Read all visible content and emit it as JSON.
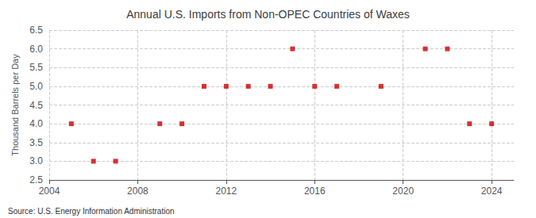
{
  "chart_data": {
    "type": "scatter",
    "title": "Annual U.S. Imports from Non-OPEC Countries of Waxes",
    "ylabel": "Thousand Barrels per Day",
    "annotations": [
      "Source: U.S. Energy Information Administration"
    ],
    "x": [
      2005,
      2006,
      2007,
      2009,
      2010,
      2011,
      2012,
      2013,
      2014,
      2015,
      2016,
      2017,
      2019,
      2021,
      2022,
      2023,
      2024
    ],
    "values": [
      4.0,
      3.0,
      3.0,
      4.0,
      4.0,
      5.0,
      5.0,
      5.0,
      5.0,
      6.0,
      5.0,
      5.0,
      5.0,
      6.0,
      6.0,
      4.0,
      4.0
    ],
    "color": "#cc0000",
    "marker": "square",
    "xlim": [
      2004,
      2025
    ],
    "xticks": [
      2004,
      2008,
      2012,
      2016,
      2020,
      2024
    ],
    "ylim": [
      2.5,
      6.5
    ],
    "yticks": [
      2.5,
      {
        "value": 3.0,
        "label": "3.0"
      },
      3.5,
      {
        "value": 4.0,
        "label": "4.0"
      },
      4.5,
      {
        "value": 5.0,
        "label": "5.0"
      },
      5.5,
      {
        "value": 6.0,
        "label": "6.0"
      },
      6.5
    ],
    "grid": true
  }
}
